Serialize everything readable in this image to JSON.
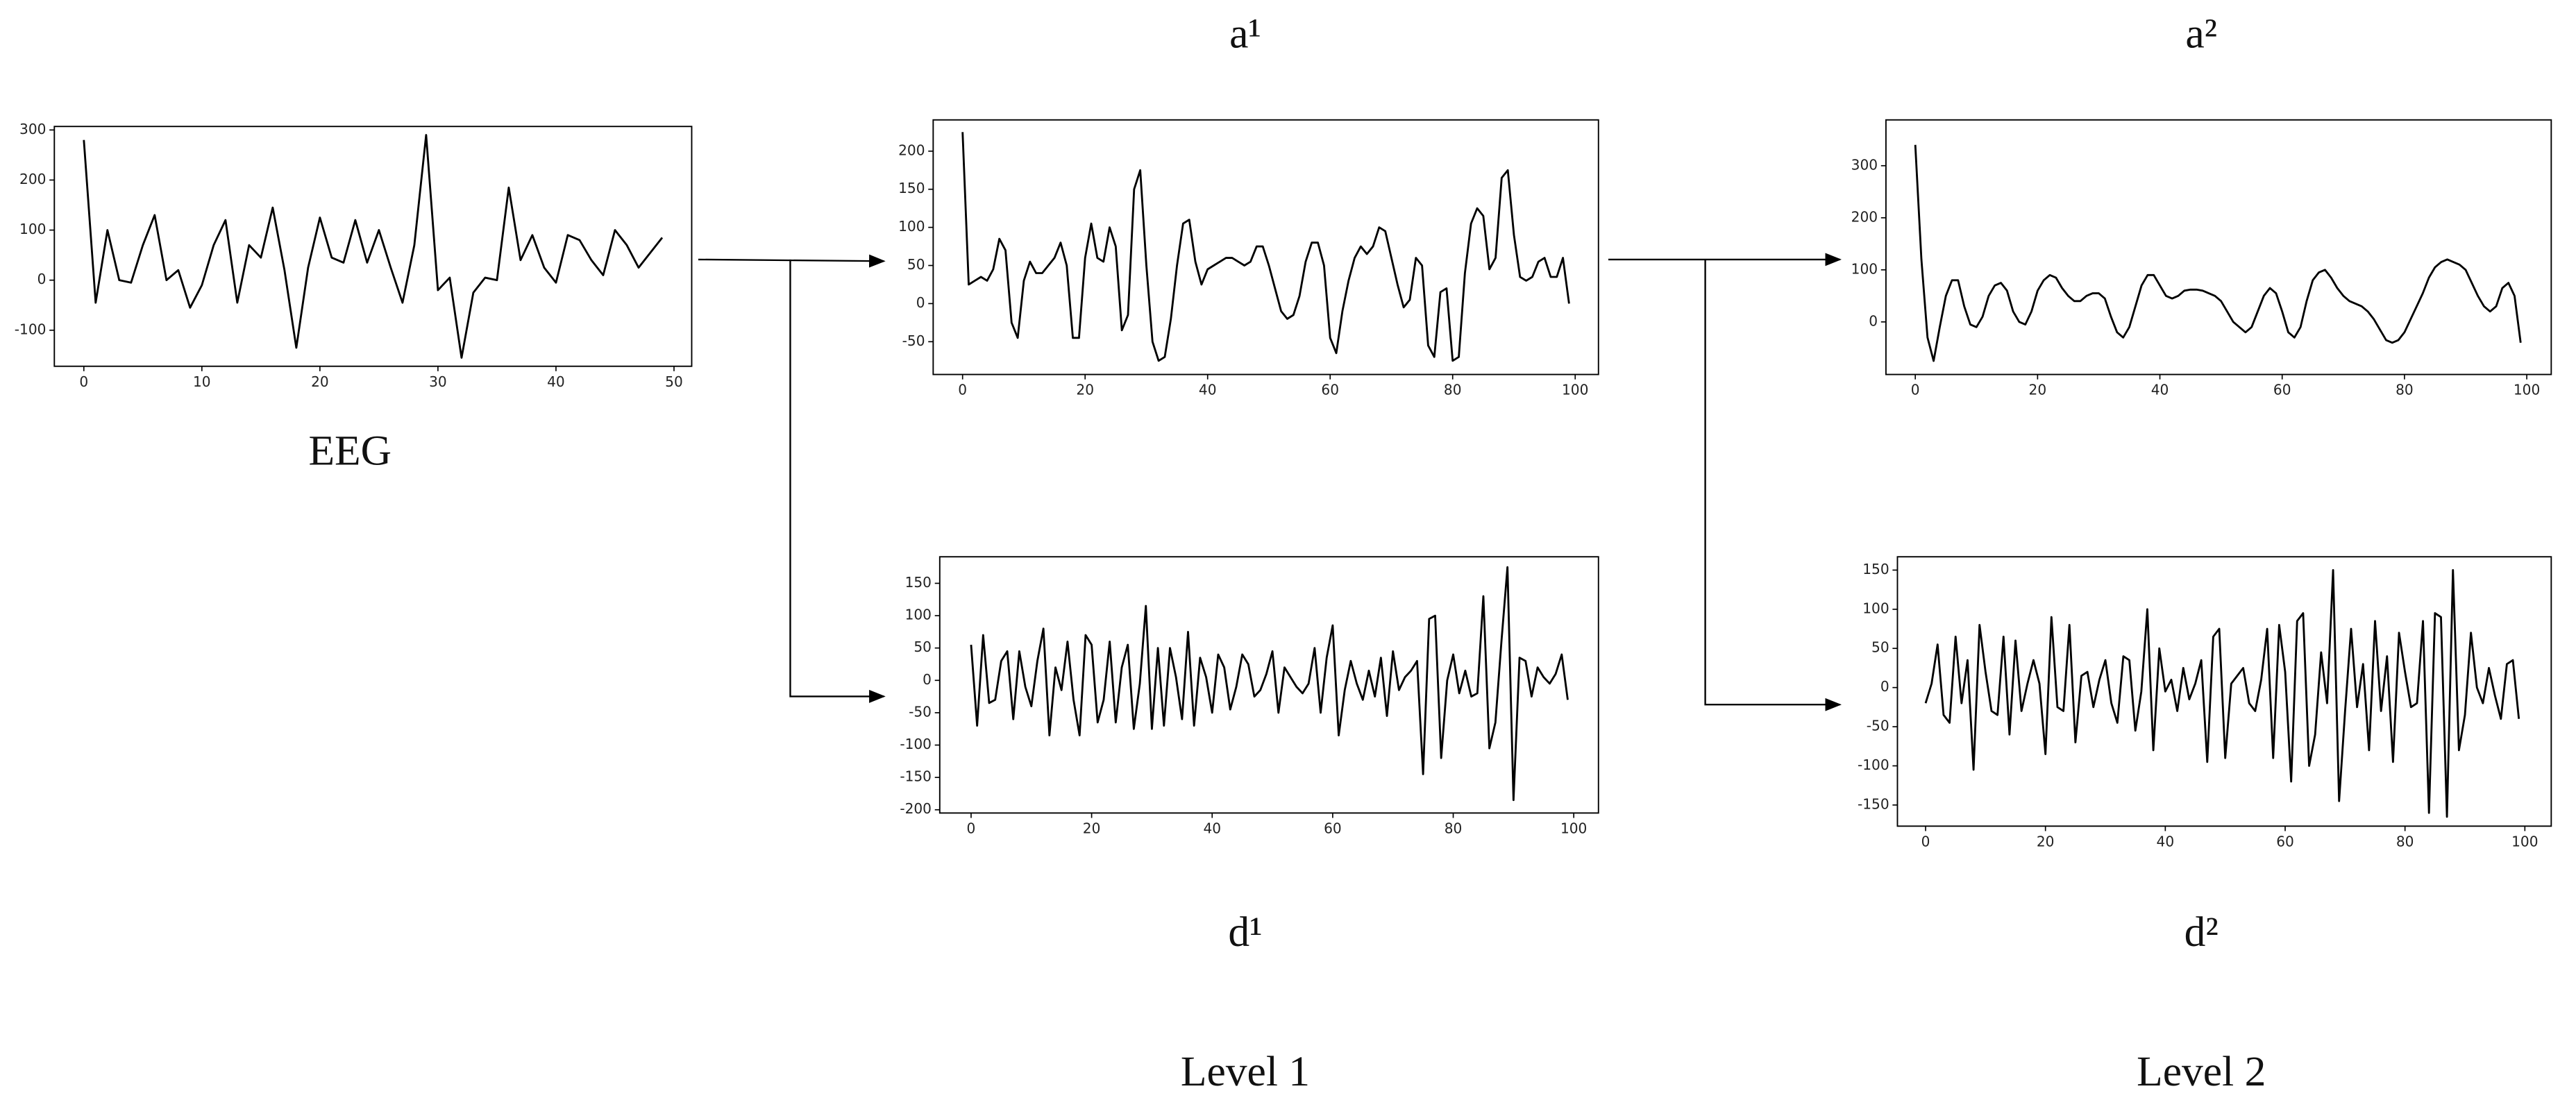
{
  "chart_data": [
    {
      "type": "line",
      "title": "EEG",
      "color": "#000000",
      "x": [
        0,
        1,
        2,
        3,
        4,
        5,
        6,
        7,
        8,
        9,
        10,
        11,
        12,
        13,
        14,
        15,
        16,
        17,
        18,
        19,
        20,
        21,
        22,
        23,
        24,
        25,
        26,
        27,
        28,
        29,
        30,
        31,
        32,
        33,
        34,
        35,
        36,
        37,
        38,
        39,
        40,
        41,
        42,
        43,
        44,
        45,
        46,
        47,
        48,
        49
      ],
      "values": [
        280,
        -45,
        100,
        0,
        -5,
        70,
        130,
        0,
        20,
        -55,
        -10,
        70,
        120,
        -45,
        70,
        45,
        145,
        20,
        -135,
        25,
        125,
        45,
        35,
        120,
        35,
        100,
        25,
        -45,
        70,
        290,
        -20,
        5,
        -155,
        -25,
        5,
        0,
        185,
        40,
        90,
        25,
        -5,
        90,
        80,
        40,
        10,
        100,
        70,
        25,
        55,
        85
      ],
      "xlim": [
        -2.5,
        51.5
      ],
      "ylim": [
        -172,
        307
      ],
      "xticks": [
        0,
        10,
        20,
        30,
        40,
        50
      ],
      "yticks": [
        -100,
        0,
        100,
        200,
        300
      ]
    },
    {
      "type": "line",
      "title": "a¹",
      "color": "#000000",
      "x": [
        0,
        1,
        2,
        3,
        4,
        5,
        6,
        7,
        8,
        9,
        10,
        11,
        12,
        13,
        14,
        15,
        16,
        17,
        18,
        19,
        20,
        21,
        22,
        23,
        24,
        25,
        26,
        27,
        28,
        29,
        30,
        31,
        32,
        33,
        34,
        35,
        36,
        37,
        38,
        39,
        40,
        41,
        42,
        43,
        44,
        45,
        46,
        47,
        48,
        49,
        50,
        51,
        52,
        53,
        54,
        55,
        56,
        57,
        58,
        59,
        60,
        61,
        62,
        63,
        64,
        65,
        66,
        67,
        68,
        69,
        70,
        71,
        72,
        73,
        74,
        75,
        76,
        77,
        78,
        79,
        80,
        81,
        82,
        83,
        84,
        85,
        86,
        87,
        88,
        89,
        90,
        91,
        92,
        93,
        94,
        95,
        96,
        97,
        98,
        99
      ],
      "values": [
        225,
        25,
        30,
        35,
        30,
        45,
        85,
        70,
        -25,
        -45,
        30,
        55,
        40,
        40,
        50,
        60,
        80,
        50,
        -45,
        -45,
        60,
        105,
        60,
        55,
        100,
        75,
        -35,
        -15,
        150,
        175,
        50,
        -50,
        -75,
        -70,
        -20,
        50,
        105,
        110,
        55,
        25,
        45,
        50,
        55,
        60,
        60,
        55,
        50,
        55,
        75,
        75,
        50,
        20,
        -10,
        -20,
        -15,
        10,
        55,
        80,
        80,
        50,
        -45,
        -65,
        -10,
        30,
        60,
        75,
        65,
        75,
        100,
        95,
        60,
        25,
        -5,
        5,
        60,
        50,
        -55,
        -70,
        15,
        20,
        -75,
        -70,
        40,
        105,
        125,
        115,
        45,
        60,
        165,
        175,
        90,
        35,
        30,
        35,
        55,
        60,
        35,
        35,
        60,
        0
      ],
      "xlim": [
        -4.8,
        103.8
      ],
      "ylim": [
        -93,
        241
      ],
      "xticks": [
        0,
        20,
        40,
        60,
        80,
        100
      ],
      "yticks": [
        -50,
        0,
        50,
        100,
        150,
        200
      ]
    },
    {
      "type": "line",
      "title": "d¹",
      "color": "#000000",
      "x": [
        0,
        1,
        2,
        3,
        4,
        5,
        6,
        7,
        8,
        9,
        10,
        11,
        12,
        13,
        14,
        15,
        16,
        17,
        18,
        19,
        20,
        21,
        22,
        23,
        24,
        25,
        26,
        27,
        28,
        29,
        30,
        31,
        32,
        33,
        34,
        35,
        36,
        37,
        38,
        39,
        40,
        41,
        42,
        43,
        44,
        45,
        46,
        47,
        48,
        49,
        50,
        51,
        52,
        53,
        54,
        55,
        56,
        57,
        58,
        59,
        60,
        61,
        62,
        63,
        64,
        65,
        66,
        67,
        68,
        69,
        70,
        71,
        72,
        73,
        74,
        75,
        76,
        77,
        78,
        79,
        80,
        81,
        82,
        83,
        84,
        85,
        86,
        87,
        88,
        89,
        90,
        91,
        92,
        93,
        94,
        95,
        96,
        97,
        98,
        99
      ],
      "values": [
        55,
        -70,
        70,
        -35,
        -30,
        30,
        45,
        -60,
        45,
        -10,
        -40,
        30,
        80,
        -85,
        20,
        -15,
        60,
        -30,
        -85,
        70,
        55,
        -65,
        -30,
        60,
        -65,
        20,
        55,
        -75,
        -5,
        115,
        -75,
        50,
        -70,
        50,
        5,
        -60,
        75,
        -70,
        35,
        5,
        -50,
        40,
        20,
        -45,
        -10,
        40,
        25,
        -25,
        -15,
        10,
        45,
        -50,
        20,
        5,
        -10,
        -20,
        -5,
        50,
        -50,
        35,
        85,
        -85,
        -15,
        30,
        -5,
        -30,
        15,
        -25,
        35,
        -55,
        45,
        -15,
        5,
        15,
        30,
        -145,
        95,
        100,
        -120,
        0,
        40,
        -20,
        15,
        -25,
        -20,
        130,
        -105,
        -65,
        60,
        175,
        -185,
        35,
        30,
        -25,
        20,
        5,
        -5,
        10,
        40,
        -30
      ],
      "xlim": [
        -5.2,
        104.1
      ],
      "ylim": [
        -205,
        191
      ],
      "xticks": [
        0,
        20,
        40,
        60,
        80,
        100
      ],
      "yticks": [
        -200,
        -150,
        -100,
        -50,
        0,
        50,
        100,
        150
      ]
    },
    {
      "type": "line",
      "title": "a²",
      "color": "#000000",
      "x": [
        0,
        1,
        2,
        3,
        4,
        5,
        6,
        7,
        8,
        9,
        10,
        11,
        12,
        13,
        14,
        15,
        16,
        17,
        18,
        19,
        20,
        21,
        22,
        23,
        24,
        25,
        26,
        27,
        28,
        29,
        30,
        31,
        32,
        33,
        34,
        35,
        36,
        37,
        38,
        39,
        40,
        41,
        42,
        43,
        44,
        45,
        46,
        47,
        48,
        49,
        50,
        51,
        52,
        53,
        54,
        55,
        56,
        57,
        58,
        59,
        60,
        61,
        62,
        63,
        64,
        65,
        66,
        67,
        68,
        69,
        70,
        71,
        72,
        73,
        74,
        75,
        76,
        77,
        78,
        79,
        80,
        81,
        82,
        83,
        84,
        85,
        86,
        87,
        88,
        89,
        90,
        91,
        92,
        93,
        94,
        95,
        96,
        97,
        98,
        99
      ],
      "values": [
        340,
        120,
        -30,
        -75,
        -10,
        50,
        80,
        80,
        30,
        -5,
        -10,
        10,
        50,
        70,
        75,
        60,
        20,
        0,
        -5,
        20,
        60,
        80,
        90,
        85,
        65,
        50,
        40,
        40,
        50,
        55,
        55,
        45,
        10,
        -20,
        -30,
        -10,
        30,
        70,
        90,
        90,
        70,
        50,
        45,
        50,
        60,
        62,
        62,
        60,
        55,
        50,
        40,
        20,
        0,
        -10,
        -20,
        -10,
        20,
        50,
        65,
        55,
        20,
        -20,
        -30,
        -10,
        40,
        80,
        95,
        100,
        85,
        65,
        50,
        40,
        35,
        30,
        20,
        5,
        -15,
        -35,
        -40,
        -35,
        -20,
        5,
        30,
        55,
        85,
        105,
        115,
        120,
        115,
        110,
        100,
        75,
        50,
        30,
        20,
        30,
        65,
        75,
        50,
        -40
      ],
      "xlim": [
        -4.8,
        104
      ],
      "ylim": [
        -101,
        388
      ],
      "xticks": [
        0,
        20,
        40,
        60,
        80,
        100
      ],
      "yticks": [
        0,
        100,
        200,
        300
      ]
    },
    {
      "type": "line",
      "title": "d²",
      "color": "#000000",
      "x": [
        0,
        1,
        2,
        3,
        4,
        5,
        6,
        7,
        8,
        9,
        10,
        11,
        12,
        13,
        14,
        15,
        16,
        17,
        18,
        19,
        20,
        21,
        22,
        23,
        24,
        25,
        26,
        27,
        28,
        29,
        30,
        31,
        32,
        33,
        34,
        35,
        36,
        37,
        38,
        39,
        40,
        41,
        42,
        43,
        44,
        45,
        46,
        47,
        48,
        49,
        50,
        51,
        52,
        53,
        54,
        55,
        56,
        57,
        58,
        59,
        60,
        61,
        62,
        63,
        64,
        65,
        66,
        67,
        68,
        69,
        70,
        71,
        72,
        73,
        74,
        75,
        76,
        77,
        78,
        79,
        80,
        81,
        82,
        83,
        84,
        85,
        86,
        87,
        88,
        89,
        90,
        91,
        92,
        93,
        94,
        95,
        96,
        97,
        98,
        99
      ],
      "values": [
        -20,
        5,
        55,
        -35,
        -45,
        65,
        -20,
        35,
        -105,
        80,
        20,
        -30,
        -35,
        65,
        -60,
        60,
        -30,
        5,
        35,
        5,
        -85,
        90,
        -25,
        -30,
        80,
        -70,
        15,
        20,
        -25,
        10,
        35,
        -20,
        -45,
        40,
        35,
        -55,
        -5,
        100,
        -80,
        50,
        -5,
        10,
        -30,
        25,
        -15,
        5,
        35,
        -95,
        65,
        75,
        -90,
        5,
        15,
        25,
        -20,
        -30,
        10,
        75,
        -90,
        80,
        20,
        -120,
        85,
        95,
        -100,
        -60,
        45,
        -20,
        150,
        -145,
        -30,
        75,
        -25,
        30,
        -80,
        85,
        -30,
        40,
        -95,
        70,
        20,
        -25,
        -20,
        85,
        -160,
        95,
        90,
        -165,
        150,
        -80,
        -35,
        70,
        0,
        -20,
        25,
        -10,
        -40,
        30,
        35,
        -40
      ],
      "xlim": [
        -4.7,
        104.4
      ],
      "ylim": [
        -177,
        167
      ],
      "xticks": [
        0,
        20,
        40,
        60,
        80,
        100
      ],
      "yticks": [
        -150,
        -100,
        -50,
        0,
        50,
        100,
        150
      ]
    }
  ],
  "levels": [
    "Level 1",
    "Level 2"
  ]
}
